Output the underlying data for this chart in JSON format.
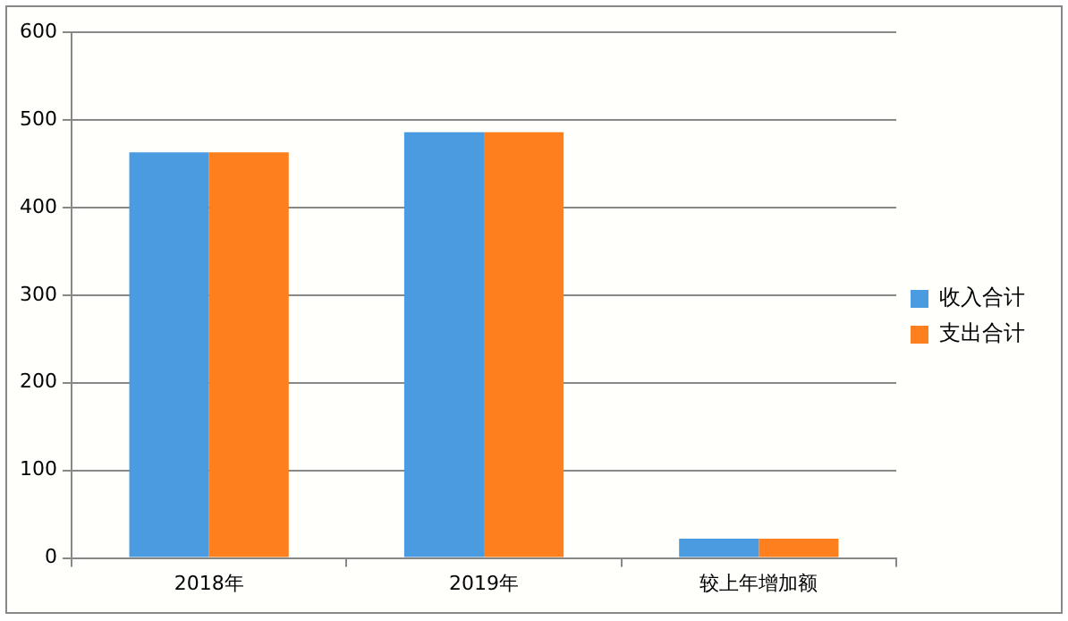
{
  "chart_data": {
    "type": "bar",
    "categories": [
      "2018年",
      "2019年",
      "较上年增加额"
    ],
    "series": [
      {
        "name": "收入合计",
        "color": "#4a9bdf",
        "values": [
          463,
          486,
          22
        ]
      },
      {
        "name": "支出合计",
        "color": "#fe7f1e",
        "values": [
          463,
          486,
          22
        ]
      }
    ],
    "ylim": [
      0,
      600
    ],
    "yticks": [
      0,
      100,
      200,
      300,
      400,
      500,
      600
    ],
    "grid": "y",
    "legend": "right"
  }
}
